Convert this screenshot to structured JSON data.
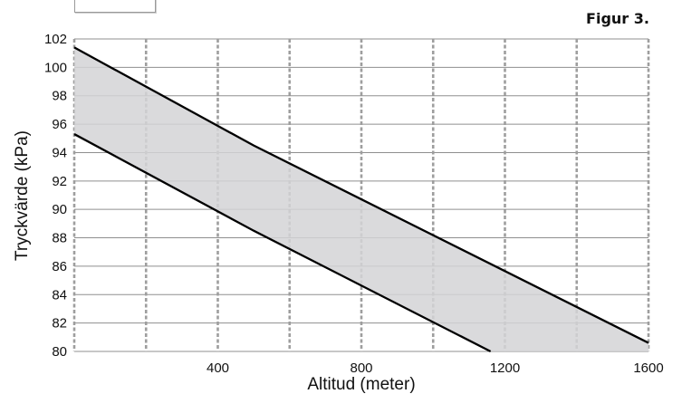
{
  "figure_label": "Figur 3.",
  "chart_data": {
    "type": "area",
    "title": "",
    "xlabel": "Altitud (meter)",
    "ylabel": "Tryckvärde (kPa)",
    "xlim": [
      0,
      1600
    ],
    "ylim": [
      80,
      102
    ],
    "x_ticks": [
      400,
      800,
      1200,
      1600
    ],
    "y_ticks": [
      80,
      82,
      84,
      86,
      88,
      90,
      92,
      94,
      96,
      98,
      100,
      102
    ],
    "vertical_gridlines": [
      200,
      400,
      600,
      800,
      1000,
      1200,
      1400
    ],
    "grid": true,
    "fill_color": "#d4d4d6",
    "line_color": "#000000",
    "grid_color": "#9e9e9e",
    "series": [
      {
        "x": [
          0,
          500,
          1600
        ],
        "values": [
          101.4,
          94.5,
          80.6
        ]
      },
      {
        "x": [
          0,
          500,
          1160
        ],
        "values": [
          95.3,
          88.5,
          80.0
        ]
      }
    ]
  }
}
